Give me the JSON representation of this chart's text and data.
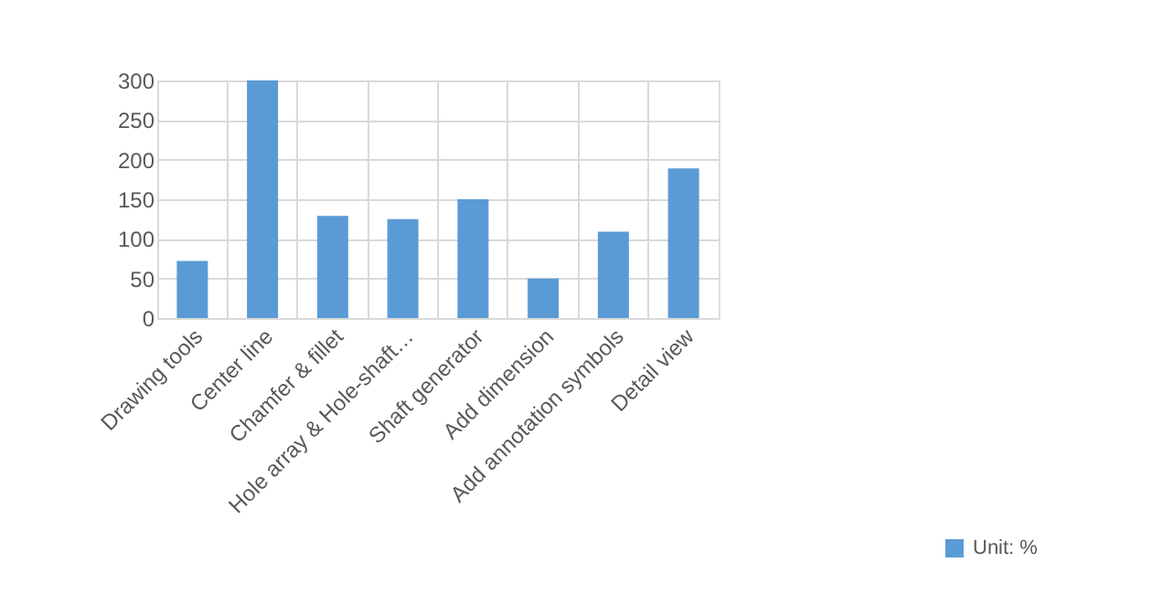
{
  "chart_data": {
    "type": "bar",
    "categories": [
      "Drawing tools",
      "Center line",
      "Chamfer & fillet",
      "Hole array & Hole-shaft…",
      "Shaft generator",
      "Add dimension",
      "Add annotation symbols",
      "Detail view"
    ],
    "series": [
      {
        "name": "Unit: %",
        "color": "#5b9bd5",
        "values": [
          72,
          300,
          129,
          125,
          150,
          50,
          109,
          189
        ]
      }
    ],
    "ylim": [
      0,
      300
    ],
    "yticks": [
      0,
      50,
      100,
      150,
      200,
      250,
      300
    ],
    "grid": true,
    "legend": "bottom right"
  }
}
